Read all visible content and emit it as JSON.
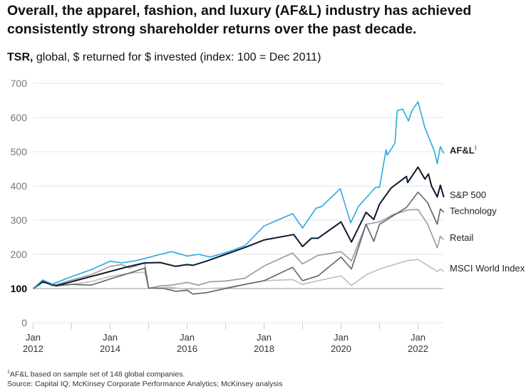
{
  "title": "Overall, the apparel, fashion, and luxury (AF&L) industry has achieved consistently strong shareholder returns over the past decade.",
  "subtitle_bold": "TSR,",
  "subtitle_rest": " global, $ returned for $ invested (index: 100 = Dec 2011)",
  "footnote_mark": "1",
  "footnote": "AF&L based on sample set of 148 global companies.",
  "source": "Source: Capital IQ; McKinsey Corporate Performance Analytics; McKinsey analysis",
  "chart_data": {
    "type": "line",
    "title": "TSR, global, $ returned for $ invested (index: 100 = Dec 2011)",
    "xlim": [
      2012,
      2022.67
    ],
    "ylim": [
      0,
      700
    ],
    "yticks": [
      0,
      100,
      200,
      300,
      400,
      500,
      600,
      700
    ],
    "xticks": [
      {
        "x": 2012,
        "l1": "Jan",
        "l2": "2012"
      },
      {
        "x": 2014,
        "l1": "Jan",
        "l2": "2014"
      },
      {
        "x": 2016,
        "l1": "Jan",
        "l2": "2016"
      },
      {
        "x": 2018,
        "l1": "Jan",
        "l2": "2018"
      },
      {
        "x": 2020,
        "l1": "Jan",
        "l2": "2020"
      },
      {
        "x": 2022,
        "l1": "Jan",
        "l2": "2022"
      }
    ],
    "baseline": 100,
    "series": [
      {
        "name": "MSCI World Index",
        "color": "#bdbdbd",
        "bold": false,
        "points": [
          [
            2012,
            100
          ],
          [
            2012.25,
            118
          ],
          [
            2012.5,
            110
          ],
          [
            2013,
            112
          ],
          [
            2013.5,
            120
          ],
          [
            2014,
            135
          ],
          [
            2014.5,
            145
          ],
          [
            2014.9,
            148
          ],
          [
            2015,
            100
          ],
          [
            2015.5,
            104
          ],
          [
            2016,
            98
          ],
          [
            2016.5,
            100
          ],
          [
            2017,
            102
          ],
          [
            2017.5,
            112
          ],
          [
            2018,
            123
          ],
          [
            2018.74,
            126
          ],
          [
            2019,
            112
          ],
          [
            2019.4,
            123
          ],
          [
            2020,
            137
          ],
          [
            2020.27,
            109
          ],
          [
            2020.65,
            140
          ],
          [
            2021,
            157
          ],
          [
            2021.7,
            181
          ],
          [
            2022,
            185
          ],
          [
            2022.3,
            164
          ],
          [
            2022.5,
            150
          ],
          [
            2022.58,
            157
          ],
          [
            2022.67,
            150
          ]
        ]
      },
      {
        "name": "Retail",
        "color": "#9a9a9a",
        "bold": false,
        "points": [
          [
            2012,
            100
          ],
          [
            2012.25,
            122
          ],
          [
            2012.5,
            108
          ],
          [
            2013,
            125
          ],
          [
            2013.5,
            140
          ],
          [
            2014,
            165
          ],
          [
            2014.3,
            170
          ],
          [
            2014.5,
            160
          ],
          [
            2014.9,
            175
          ],
          [
            2015,
            100
          ],
          [
            2015.3,
            108
          ],
          [
            2015.6,
            110
          ],
          [
            2016,
            118
          ],
          [
            2016.3,
            110
          ],
          [
            2016.6,
            120
          ],
          [
            2017,
            122
          ],
          [
            2017.5,
            130
          ],
          [
            2018,
            166
          ],
          [
            2018.74,
            204
          ],
          [
            2019,
            172
          ],
          [
            2019.4,
            197
          ],
          [
            2020,
            208
          ],
          [
            2020.27,
            181
          ],
          [
            2020.65,
            288
          ],
          [
            2021,
            295
          ],
          [
            2021.35,
            316
          ],
          [
            2021.75,
            330
          ],
          [
            2022,
            331
          ],
          [
            2022.25,
            288
          ],
          [
            2022.5,
            219
          ],
          [
            2022.58,
            253
          ],
          [
            2022.67,
            243
          ]
        ]
      },
      {
        "name": "Technology",
        "color": "#5f6468",
        "bold": false,
        "points": [
          [
            2012,
            100
          ],
          [
            2012.25,
            120
          ],
          [
            2012.6,
            108
          ],
          [
            2013,
            112
          ],
          [
            2013.5,
            110
          ],
          [
            2014,
            128
          ],
          [
            2014.5,
            145
          ],
          [
            2014.9,
            160
          ],
          [
            2015,
            102
          ],
          [
            2015.4,
            100
          ],
          [
            2015.7,
            92
          ],
          [
            2016,
            95
          ],
          [
            2016.15,
            84
          ],
          [
            2016.5,
            88
          ],
          [
            2017,
            100
          ],
          [
            2017.5,
            112
          ],
          [
            2018,
            123
          ],
          [
            2018.74,
            162
          ],
          [
            2019,
            123
          ],
          [
            2019.4,
            137
          ],
          [
            2020,
            192
          ],
          [
            2020.27,
            157
          ],
          [
            2020.65,
            288
          ],
          [
            2020.85,
            238
          ],
          [
            2021,
            288
          ],
          [
            2021.7,
            337
          ],
          [
            2022,
            382
          ],
          [
            2022.25,
            351
          ],
          [
            2022.5,
            288
          ],
          [
            2022.58,
            333
          ],
          [
            2022.67,
            323
          ]
        ]
      },
      {
        "name": "S&P 500",
        "color": "#0b1a2c",
        "bold": false,
        "points": [
          [
            2012,
            100
          ],
          [
            2012.25,
            120
          ],
          [
            2012.6,
            108
          ],
          [
            2013,
            120
          ],
          [
            2013.5,
            135
          ],
          [
            2014,
            150
          ],
          [
            2014.5,
            165
          ],
          [
            2014.9,
            175
          ],
          [
            2015.3,
            176
          ],
          [
            2015.7,
            165
          ],
          [
            2016,
            170
          ],
          [
            2016.15,
            168
          ],
          [
            2016.5,
            180
          ],
          [
            2017,
            200
          ],
          [
            2017.5,
            220
          ],
          [
            2018,
            242
          ],
          [
            2018.77,
            258
          ],
          [
            2019,
            223
          ],
          [
            2019.23,
            247
          ],
          [
            2019.4,
            247
          ],
          [
            2020,
            295
          ],
          [
            2020.27,
            236
          ],
          [
            2020.65,
            323
          ],
          [
            2020.85,
            302
          ],
          [
            2021,
            347
          ],
          [
            2021.3,
            394
          ],
          [
            2021.7,
            428
          ],
          [
            2021.73,
            410
          ],
          [
            2022,
            455
          ],
          [
            2022.18,
            420
          ],
          [
            2022.27,
            435
          ],
          [
            2022.35,
            400
          ],
          [
            2022.5,
            368
          ],
          [
            2022.58,
            402
          ],
          [
            2022.67,
            367
          ]
        ]
      },
      {
        "name": "AF&L",
        "sup": "1",
        "color": "#2aa8e0",
        "bold": true,
        "points": [
          [
            2012,
            100
          ],
          [
            2012.25,
            125
          ],
          [
            2012.5,
            113
          ],
          [
            2013,
            135
          ],
          [
            2013.5,
            155
          ],
          [
            2014,
            180
          ],
          [
            2014.3,
            175
          ],
          [
            2014.6,
            180
          ],
          [
            2014.9,
            188
          ],
          [
            2015.3,
            200
          ],
          [
            2015.6,
            208
          ],
          [
            2016,
            195
          ],
          [
            2016.3,
            200
          ],
          [
            2016.6,
            192
          ],
          [
            2017,
            205
          ],
          [
            2017.5,
            225
          ],
          [
            2018,
            283
          ],
          [
            2018.74,
            319
          ],
          [
            2019,
            277
          ],
          [
            2019.35,
            335
          ],
          [
            2019.5,
            340
          ],
          [
            2019.98,
            392
          ],
          [
            2020.25,
            292
          ],
          [
            2020.45,
            340
          ],
          [
            2020.9,
            396
          ],
          [
            2021,
            396
          ],
          [
            2021.17,
            506
          ],
          [
            2021.2,
            490
          ],
          [
            2021.4,
            525
          ],
          [
            2021.46,
            620
          ],
          [
            2021.6,
            625
          ],
          [
            2021.75,
            590
          ],
          [
            2021.85,
            622
          ],
          [
            2022,
            646
          ],
          [
            2022.18,
            570
          ],
          [
            2022.43,
            500
          ],
          [
            2022.5,
            465
          ],
          [
            2022.58,
            515
          ],
          [
            2022.67,
            495
          ]
        ]
      }
    ],
    "labels": [
      {
        "series": "AF&L",
        "text": "AF&L",
        "y": 505
      },
      {
        "series": "S&P 500",
        "text": "S&P 500",
        "y": 375
      },
      {
        "series": "Technology",
        "text": "Technology",
        "y": 328
      },
      {
        "series": "Retail",
        "text": "Retail",
        "y": 250
      },
      {
        "series": "MSCI World Index",
        "text": "MSCI World Index",
        "y": 160
      }
    ]
  }
}
